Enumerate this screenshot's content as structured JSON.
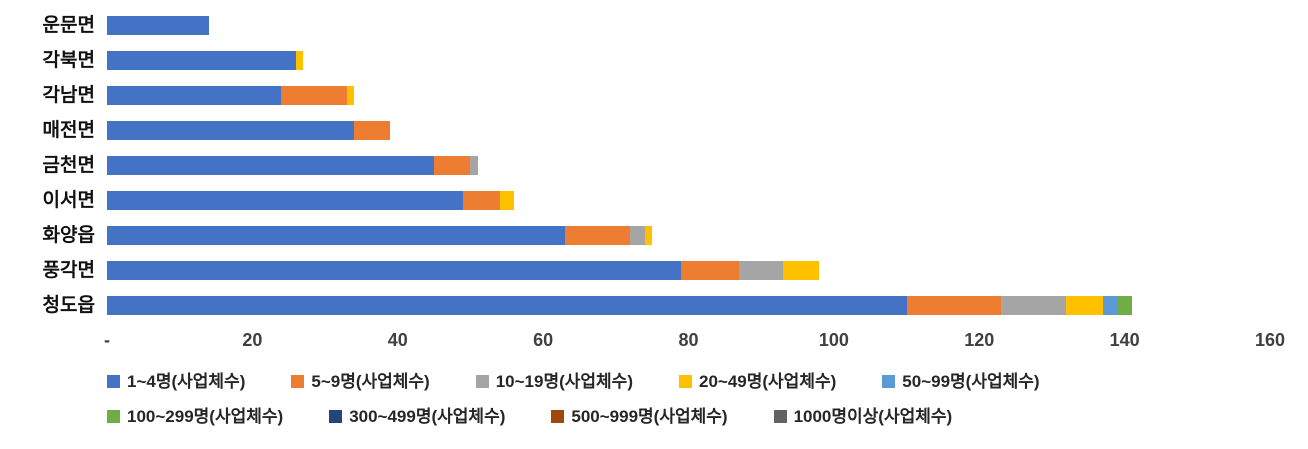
{
  "chart_data": {
    "type": "bar",
    "orientation": "horizontal",
    "stacked": true,
    "title": "",
    "xlabel": "",
    "ylabel": "",
    "xlim": [
      0,
      160
    ],
    "grid": false,
    "legend_position": "bottom",
    "categories": [
      "운문면",
      "각북면",
      "각남면",
      "매전면",
      "금천면",
      "이서면",
      "화양읍",
      "풍각면",
      "청도읍"
    ],
    "x_ticks": [
      {
        "label": "-",
        "value": 0
      },
      {
        "label": "20",
        "value": 20
      },
      {
        "label": "40",
        "value": 40
      },
      {
        "label": "60",
        "value": 60
      },
      {
        "label": "80",
        "value": 80
      },
      {
        "label": "100",
        "value": 100
      },
      {
        "label": "120",
        "value": 120
      },
      {
        "label": "140",
        "value": 140
      },
      {
        "label": "160",
        "value": 160
      }
    ],
    "series": [
      {
        "name": "1~4명(사업체수)",
        "color": "#4472C4",
        "values": [
          14,
          26,
          24,
          34,
          45,
          49,
          63,
          79,
          110
        ]
      },
      {
        "name": "5~9명(사업체수)",
        "color": "#ED7D31",
        "values": [
          0,
          0,
          9,
          5,
          5,
          5,
          9,
          8,
          13
        ]
      },
      {
        "name": "10~19명(사업체수)",
        "color": "#A5A5A5",
        "values": [
          0,
          0,
          0,
          0,
          1,
          0,
          2,
          6,
          9
        ]
      },
      {
        "name": "20~49명(사업체수)",
        "color": "#FFC000",
        "values": [
          0,
          1,
          1,
          0,
          0,
          2,
          1,
          5,
          5
        ]
      },
      {
        "name": "50~99명(사업체수)",
        "color": "#5B9BD5",
        "values": [
          0,
          0,
          0,
          0,
          0,
          0,
          0,
          0,
          2
        ]
      },
      {
        "name": "100~299명(사업체수)",
        "color": "#70AD47",
        "values": [
          0,
          0,
          0,
          0,
          0,
          0,
          0,
          0,
          2
        ]
      },
      {
        "name": "300~499명(사업체수)",
        "color": "#264478",
        "values": [
          0,
          0,
          0,
          0,
          0,
          0,
          0,
          0,
          0
        ]
      },
      {
        "name": "500~999명(사업체수)",
        "color": "#9E480E",
        "values": [
          0,
          0,
          0,
          0,
          0,
          0,
          0,
          0,
          0
        ]
      },
      {
        "name": "1000명이상(사업체수)",
        "color": "#636363",
        "values": [
          0,
          0,
          0,
          0,
          0,
          0,
          0,
          0,
          0
        ]
      }
    ],
    "legend_rows": [
      5,
      4
    ]
  }
}
